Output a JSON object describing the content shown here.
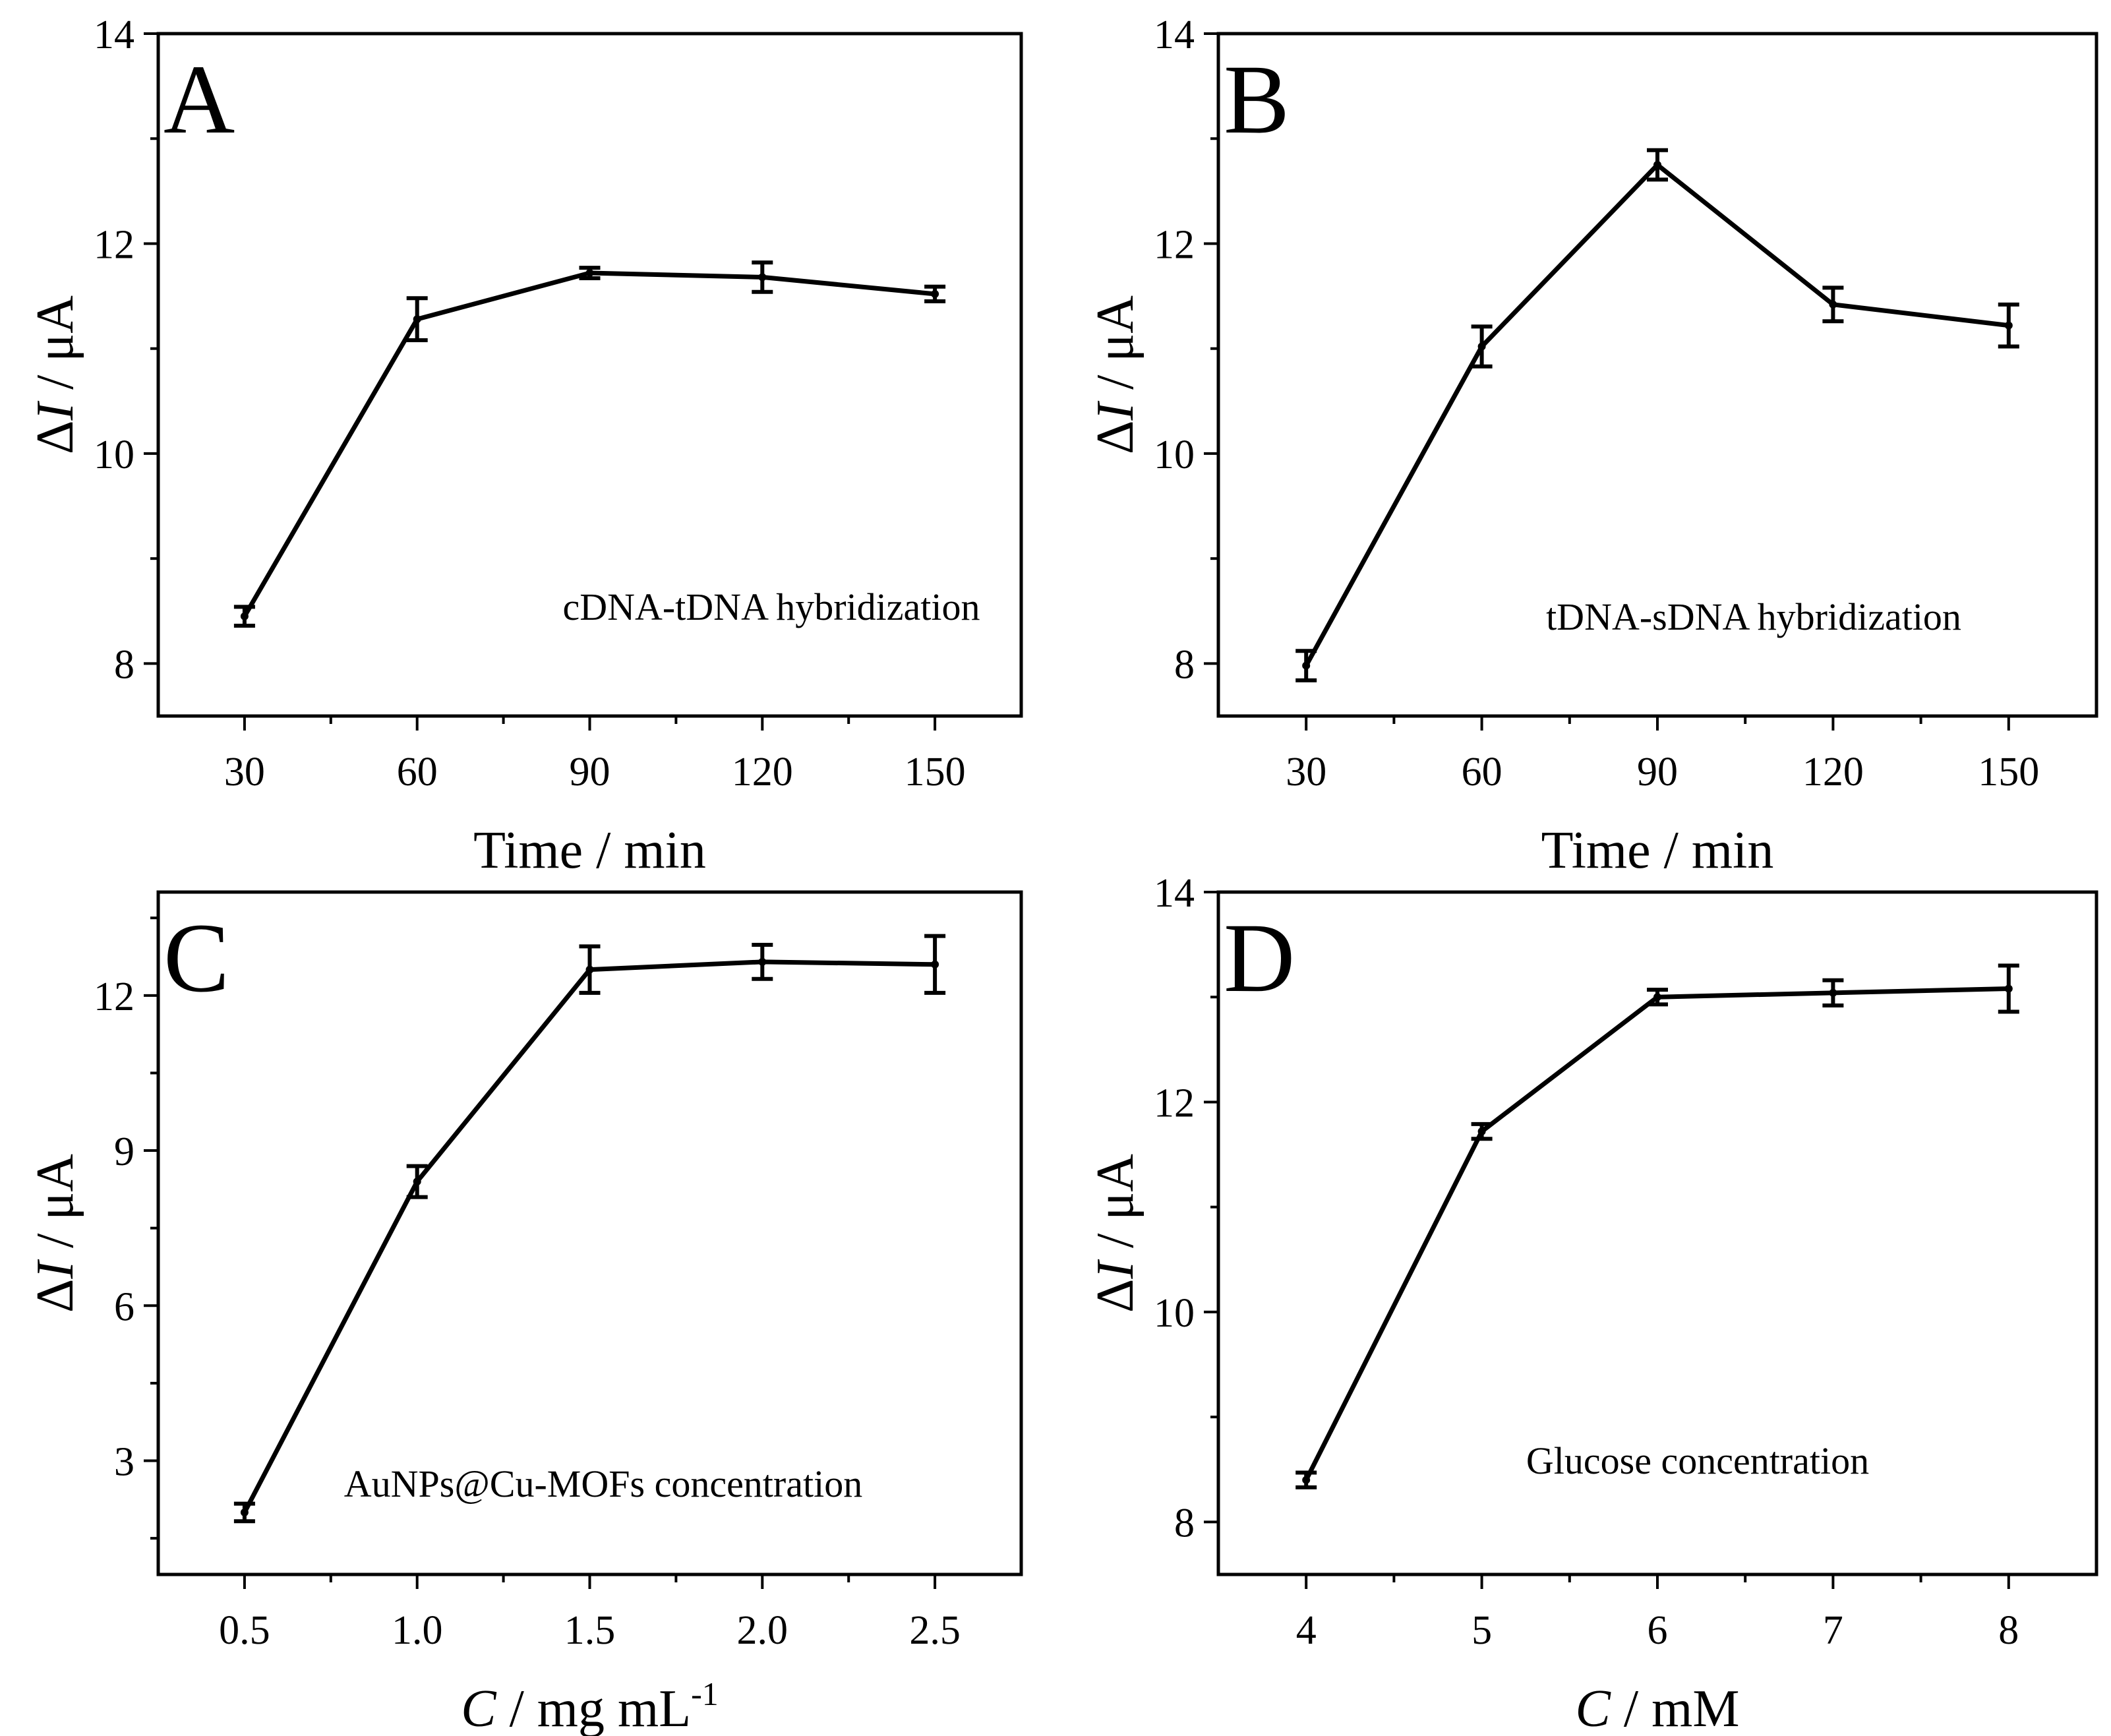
{
  "chart_data": [
    {
      "panel": "A",
      "type": "line",
      "annotation": "cDNA-tDNA hybridization",
      "x": [
        30,
        60,
        90,
        120,
        150
      ],
      "y": [
        8.45,
        11.28,
        11.72,
        11.68,
        11.52
      ],
      "yerr": [
        0.09,
        0.2,
        0.05,
        0.14,
        0.07
      ],
      "xticks": [
        "30",
        "60",
        "90",
        "120",
        "150"
      ],
      "yticks": [
        "8",
        "10",
        "12",
        "14"
      ],
      "xlim": [
        15,
        165
      ],
      "ylim": [
        7.5,
        14
      ],
      "xlabel": "Time / min",
      "ylabel": {
        "delta": "Δ",
        "var": "I",
        "rest": " / μA"
      }
    },
    {
      "panel": "B",
      "type": "line",
      "annotation": "tDNA-sDNA hybridization",
      "x": [
        30,
        60,
        90,
        120,
        150
      ],
      "y": [
        7.98,
        11.02,
        12.75,
        11.42,
        11.22
      ],
      "yerr": [
        0.14,
        0.19,
        0.14,
        0.16,
        0.2
      ],
      "xticks": [
        "30",
        "60",
        "90",
        "120",
        "150"
      ],
      "yticks": [
        "8",
        "10",
        "12",
        "14"
      ],
      "xlim": [
        15,
        165
      ],
      "ylim": [
        7.5,
        14
      ],
      "xlabel": "Time / min",
      "ylabel": {
        "delta": "Δ",
        "var": "I",
        "rest": " / μA"
      }
    },
    {
      "panel": "C",
      "type": "line",
      "annotation": "AuNPs@Cu-MOFs concentration",
      "x": [
        0.5,
        1.0,
        1.5,
        2.0,
        2.5
      ],
      "y": [
        2.0,
        8.4,
        12.5,
        12.65,
        12.6
      ],
      "yerr": [
        0.17,
        0.3,
        0.45,
        0.33,
        0.55
      ],
      "xticks": [
        "0.5",
        "1.0",
        "1.5",
        "2.0",
        "2.5"
      ],
      "yticks": [
        "3",
        "6",
        "9",
        "12"
      ],
      "xlim": [
        0.25,
        2.75
      ],
      "ylim": [
        0.8,
        14
      ],
      "xlabel": {
        "var": "C",
        "rest": " / mg mL",
        "sup": "-1"
      },
      "ylabel": {
        "delta": "Δ",
        "var": "I",
        "rest": " / μA"
      }
    },
    {
      "panel": "D",
      "type": "line",
      "annotation": "Glucose concentration",
      "x": [
        4,
        5,
        6,
        7,
        8
      ],
      "y": [
        8.4,
        11.72,
        13.0,
        13.04,
        13.08
      ],
      "yerr": [
        0.07,
        0.07,
        0.07,
        0.12,
        0.22
      ],
      "xticks": [
        "4",
        "5",
        "6",
        "7",
        "8"
      ],
      "yticks": [
        "8",
        "10",
        "12",
        "14"
      ],
      "xlim": [
        3.5,
        8.5
      ],
      "ylim": [
        7.5,
        14
      ],
      "xlabel": {
        "var": "C",
        "rest": " / mM"
      },
      "ylabel": {
        "delta": "Δ",
        "var": "I",
        "rest": " / μA"
      }
    }
  ]
}
